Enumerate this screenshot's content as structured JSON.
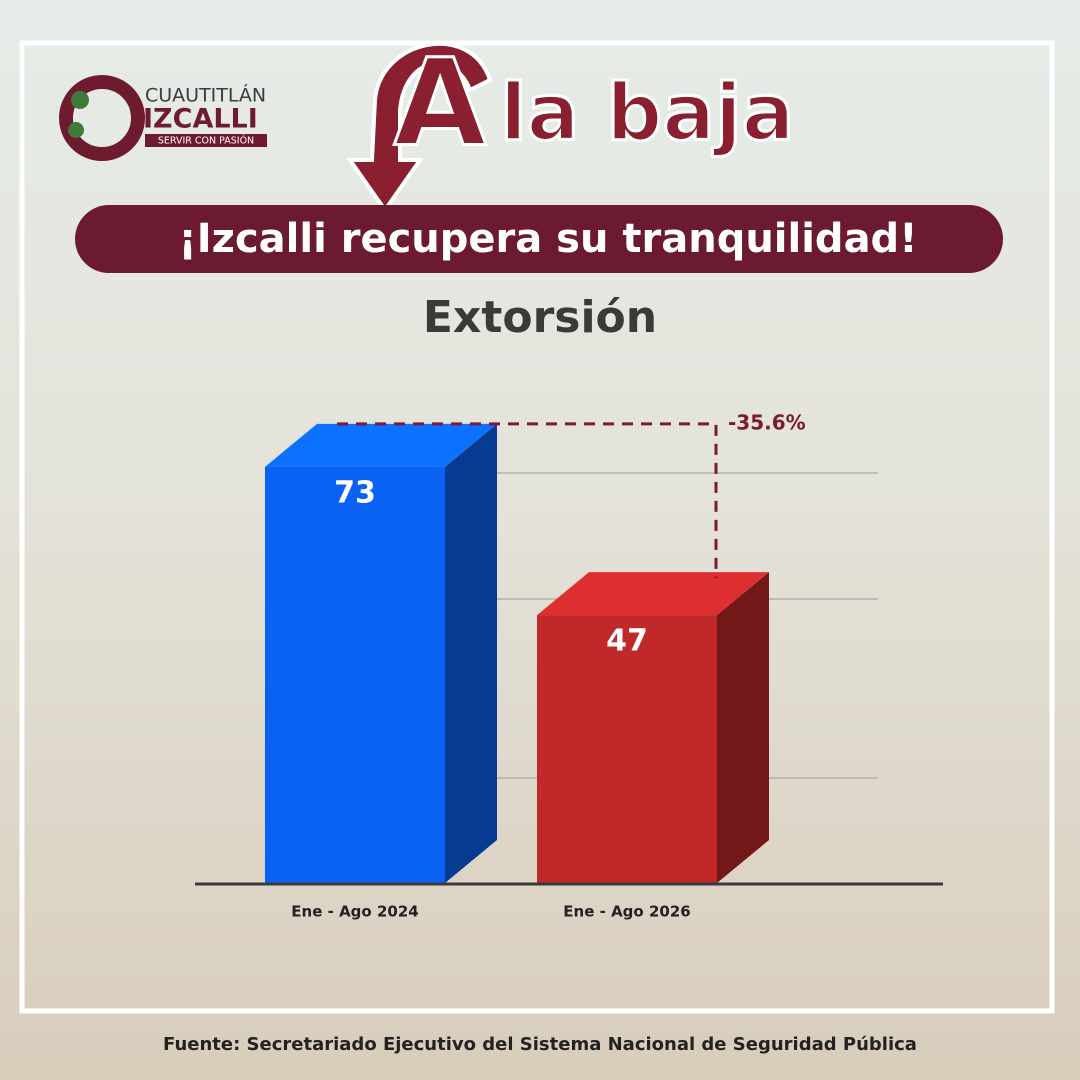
{
  "header": {
    "logo": [
      "CUAUTITLÁN",
      "IZCALLI",
      "SERVIR CON PASIÓN"
    ],
    "headline_letter": "A",
    "headline": "la baja",
    "banner": "¡Izcalli recupera su tranquilidad!"
  },
  "chart_data": {
    "type": "bar3d",
    "title": "Extorsión",
    "categories": [
      "Ene - Ago 2024",
      "Ene - Ago 2026"
    ],
    "values": [
      73,
      47
    ],
    "colors": [
      "#0a62f2",
      "#c0282a"
    ],
    "ylim": [
      0,
      80
    ],
    "annotation": "-35.6%"
  },
  "footer": "Fuente: Secretariado Ejecutivo del Sistema Nacional de Seguridad Pública"
}
